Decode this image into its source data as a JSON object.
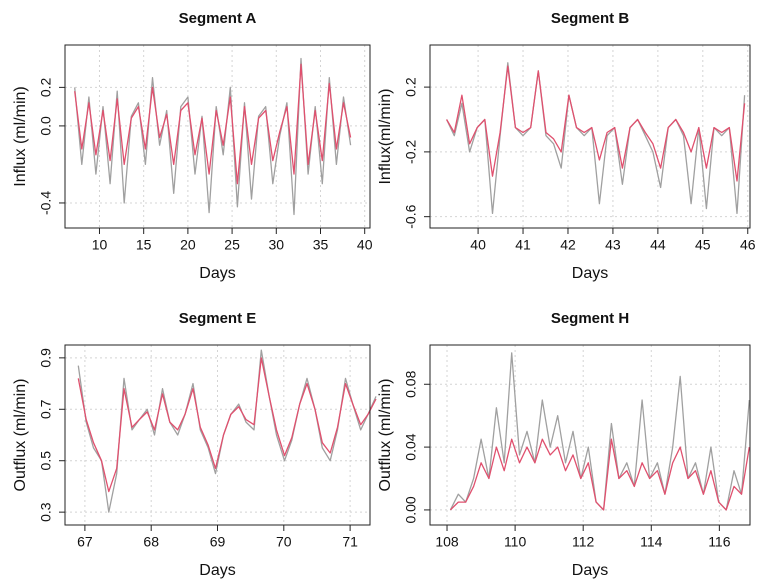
{
  "chart_data": [
    {
      "type": "line",
      "title": "Segment A",
      "xlabel": "Days",
      "ylabel": "Influx (ml/min)",
      "x": [
        7.2,
        8.0,
        8.8,
        9.6,
        10.4,
        11.2,
        12.0,
        12.8,
        13.6,
        14.4,
        15.2,
        16.0,
        16.8,
        17.6,
        18.4,
        19.2,
        20.0,
        20.8,
        21.6,
        22.4,
        23.2,
        24.0,
        24.8,
        25.6,
        26.4,
        27.2,
        28.0,
        28.8,
        29.6,
        30.4,
        31.2,
        32.0,
        32.8,
        33.6,
        34.4,
        35.2,
        36.0,
        36.8,
        37.6,
        38.4
      ],
      "series": [
        {
          "color": "#a0a0a0",
          "values": [
            0.2,
            -0.2,
            0.15,
            -0.25,
            0.1,
            -0.3,
            0.18,
            -0.4,
            0.05,
            0.12,
            -0.2,
            0.25,
            -0.1,
            0.08,
            -0.35,
            0.1,
            0.15,
            -0.25,
            0.05,
            -0.45,
            0.1,
            -0.15,
            0.2,
            -0.42,
            0.12,
            -0.38,
            0.05,
            0.1,
            -0.3,
            -0.05,
            0.12,
            -0.46,
            0.35,
            -0.25,
            0.1,
            -0.3,
            0.25,
            -0.2,
            0.15,
            -0.1
          ]
        },
        {
          "color": "#e0506e",
          "values": [
            0.18,
            -0.12,
            0.12,
            -0.15,
            0.08,
            -0.18,
            0.14,
            -0.2,
            0.04,
            0.1,
            -0.12,
            0.2,
            -0.06,
            0.06,
            -0.2,
            0.08,
            0.12,
            -0.15,
            0.04,
            -0.25,
            0.08,
            -0.1,
            0.15,
            -0.3,
            0.1,
            -0.2,
            0.04,
            0.08,
            -0.18,
            -0.03,
            0.1,
            -0.25,
            0.32,
            -0.2,
            0.08,
            -0.18,
            0.22,
            -0.12,
            0.12,
            -0.06
          ]
        }
      ],
      "xlim": [
        6.1,
        40.6
      ],
      "ylim": [
        0.42,
        -0.53
      ],
      "xticks": [
        10,
        15,
        20,
        25,
        30,
        35,
        40
      ],
      "yticks": [
        0.2,
        {
          "value": 0,
          "label": "0.0"
        },
        -0.4
      ],
      "grid": true
    },
    {
      "type": "line",
      "title": "Segment B",
      "xlabel": "Days",
      "ylabel": "Influx(ml/min)",
      "x": [
        39.3,
        39.47,
        39.64,
        39.81,
        39.98,
        40.15,
        40.32,
        40.49,
        40.66,
        40.83,
        41.0,
        41.17,
        41.34,
        41.51,
        41.68,
        41.85,
        42.02,
        42.19,
        42.36,
        42.53,
        42.7,
        42.87,
        43.04,
        43.21,
        43.38,
        43.55,
        43.72,
        43.89,
        44.06,
        44.23,
        44.4,
        44.57,
        44.74,
        44.91,
        45.08,
        45.25,
        45.42,
        45.59,
        45.76,
        45.93
      ],
      "series": [
        {
          "color": "#a0a0a0",
          "values": [
            0.0,
            -0.1,
            0.1,
            -0.2,
            -0.05,
            0.0,
            -0.58,
            -0.1,
            0.35,
            -0.05,
            -0.1,
            -0.05,
            0.3,
            -0.1,
            -0.15,
            -0.3,
            0.15,
            -0.05,
            -0.1,
            -0.05,
            -0.52,
            -0.1,
            -0.05,
            -0.4,
            -0.05,
            0.0,
            -0.1,
            -0.2,
            -0.42,
            -0.05,
            0.0,
            -0.1,
            -0.52,
            -0.05,
            -0.55,
            -0.05,
            -0.1,
            -0.05,
            -0.58,
            0.15
          ]
        },
        {
          "color": "#e0506e",
          "values": [
            0.0,
            -0.08,
            0.15,
            -0.15,
            -0.05,
            0.0,
            -0.35,
            -0.08,
            0.33,
            -0.05,
            -0.08,
            -0.05,
            0.3,
            -0.08,
            -0.12,
            -0.2,
            0.15,
            -0.05,
            -0.08,
            -0.05,
            -0.25,
            -0.08,
            -0.05,
            -0.3,
            -0.05,
            0.0,
            -0.08,
            -0.15,
            -0.3,
            -0.05,
            0.0,
            -0.08,
            -0.2,
            -0.05,
            -0.3,
            -0.05,
            -0.08,
            -0.05,
            -0.38,
            0.1
          ]
        }
      ],
      "xlim": [
        38.93,
        46.05
      ],
      "ylim": [
        0.46,
        -0.67
      ],
      "xticks": [
        40,
        41,
        42,
        43,
        44,
        45,
        46
      ],
      "yticks": [
        0.2,
        -0.2,
        -0.6
      ],
      "grid": true
    },
    {
      "type": "line",
      "title": "Segment E",
      "xlabel": "Days",
      "ylabel": "Outflux (ml/min)",
      "x": [
        66.9,
        67.02,
        67.13,
        67.25,
        67.36,
        67.48,
        67.59,
        67.71,
        67.82,
        67.94,
        68.05,
        68.17,
        68.28,
        68.4,
        68.51,
        68.63,
        68.74,
        68.86,
        68.97,
        69.09,
        69.2,
        69.32,
        69.43,
        69.55,
        69.66,
        69.78,
        69.89,
        70.01,
        70.12,
        70.24,
        70.35,
        70.47,
        70.58,
        70.7,
        70.81,
        70.93,
        71.04,
        71.16,
        71.27,
        71.39
      ],
      "series": [
        {
          "color": "#a0a0a0",
          "values": [
            0.87,
            0.65,
            0.55,
            0.5,
            0.3,
            0.45,
            0.82,
            0.62,
            0.66,
            0.7,
            0.6,
            0.78,
            0.65,
            0.6,
            0.68,
            0.8,
            0.62,
            0.55,
            0.45,
            0.6,
            0.68,
            0.72,
            0.65,
            0.62,
            0.93,
            0.75,
            0.6,
            0.5,
            0.58,
            0.72,
            0.82,
            0.7,
            0.55,
            0.5,
            0.62,
            0.82,
            0.72,
            0.62,
            0.68,
            0.75
          ]
        },
        {
          "color": "#e0506e",
          "values": [
            0.82,
            0.66,
            0.57,
            0.5,
            0.38,
            0.47,
            0.78,
            0.63,
            0.66,
            0.69,
            0.62,
            0.76,
            0.65,
            0.62,
            0.68,
            0.78,
            0.63,
            0.56,
            0.47,
            0.6,
            0.68,
            0.71,
            0.66,
            0.64,
            0.9,
            0.75,
            0.62,
            0.52,
            0.59,
            0.72,
            0.8,
            0.7,
            0.57,
            0.53,
            0.63,
            0.8,
            0.72,
            0.64,
            0.68,
            0.74
          ]
        }
      ],
      "xlim": [
        66.7,
        71.3
      ],
      "ylim": [
        0.95,
        0.25
      ],
      "xticks": [
        67,
        68,
        69,
        70,
        71
      ],
      "yticks": [
        0.3,
        0.5,
        0.7,
        0.9
      ],
      "grid": true
    },
    {
      "type": "line",
      "title": "Segment H",
      "xlabel": "Days",
      "ylabel": "Outflux (ml/min)",
      "x": [
        108.1,
        108.33,
        108.55,
        108.78,
        109.0,
        109.23,
        109.45,
        109.68,
        109.9,
        110.13,
        110.35,
        110.58,
        110.8,
        111.03,
        111.25,
        111.48,
        111.7,
        111.93,
        112.15,
        112.38,
        112.6,
        112.83,
        113.05,
        113.28,
        113.5,
        113.73,
        113.95,
        114.18,
        114.4,
        114.63,
        114.85,
        115.08,
        115.3,
        115.53,
        115.75,
        115.98,
        116.2,
        116.43,
        116.65,
        116.88
      ],
      "series": [
        {
          "color": "#a0a0a0",
          "values": [
            0.0,
            0.01,
            0.005,
            0.02,
            0.045,
            0.02,
            0.065,
            0.03,
            0.1,
            0.035,
            0.05,
            0.03,
            0.07,
            0.04,
            0.06,
            0.03,
            0.05,
            0.02,
            0.04,
            0.005,
            0.0,
            0.055,
            0.02,
            0.03,
            0.015,
            0.07,
            0.02,
            0.03,
            0.01,
            0.04,
            0.085,
            0.02,
            0.03,
            0.01,
            0.04,
            0.005,
            0.0,
            0.025,
            0.01,
            0.07
          ]
        },
        {
          "color": "#e0506e",
          "values": [
            0.0,
            0.005,
            0.005,
            0.015,
            0.03,
            0.02,
            0.04,
            0.025,
            0.045,
            0.03,
            0.04,
            0.03,
            0.045,
            0.035,
            0.04,
            0.025,
            0.035,
            0.02,
            0.03,
            0.005,
            0.0,
            0.045,
            0.02,
            0.025,
            0.015,
            0.03,
            0.02,
            0.025,
            0.01,
            0.03,
            0.04,
            0.02,
            0.025,
            0.01,
            0.025,
            0.005,
            0.0,
            0.015,
            0.01,
            0.04
          ]
        }
      ],
      "xlim": [
        107.5,
        116.9
      ],
      "ylim": [
        0.105,
        -0.0096
      ],
      "xticks": [
        108,
        110,
        112,
        114,
        116
      ],
      "yticks": [
        {
          "value": 0,
          "label": "0.00"
        },
        {
          "value": 0.04,
          "label": "0.04"
        },
        {
          "value": 0.08,
          "label": "0.08"
        }
      ],
      "grid": true
    }
  ]
}
